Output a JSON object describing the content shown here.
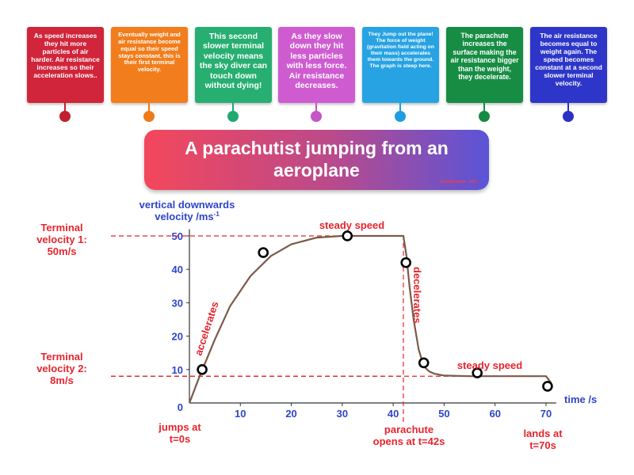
{
  "cards": [
    {
      "text": "As speed increases they hit more particles of air harder. Air resistance increases so their acceleration slows..",
      "color": "#d0253a",
      "pin": "#c0212e",
      "size": 8.5
    },
    {
      "text": "Eventually weight and air resistance become equal so their speed stays constant, this is their first terminal velocity.",
      "color": "#f27d1c",
      "pin": "#ee7b1a",
      "size": 7.5
    },
    {
      "text": "This second slower terminal velocity means the sky diver can touch down without dying!",
      "color": "#27ae71",
      "pin": "#1fa96e",
      "size": 10.5
    },
    {
      "text": "As they slow down they hit less particles with less force. Air resistance decreases.",
      "color": "#cf5bd1",
      "pin": "#c455c6",
      "size": 10.5
    },
    {
      "text": "They Jump out the plane! The force of weight (gravitation field acting on their mass) accelerates them towards the ground. The graph is steep here.",
      "color": "#27a3e3",
      "pin": "#1f9de0",
      "size": 6.8
    },
    {
      "text": "The parachute increases the surface making the air resistance bigger than the weight, they decelerate.",
      "color": "#178d44",
      "pin": "#158a41",
      "size": 8.8
    },
    {
      "text": "The air resistance becomes equal to weight again. The speed becomes constant at a second slower terminal velocity.",
      "color": "#2e36c9",
      "pin": "#2b31c4",
      "size": 8.5
    }
  ],
  "title": "A parachutist jumping from an aeroplane",
  "watermark": "Doodlesteam - 2017",
  "chart_data": {
    "type": "line",
    "ylabel_line1": "vertical downwards",
    "ylabel_line2": "velocity /ms",
    "ylabel_sup": "-1",
    "xlabel": "time /s",
    "xlim": [
      0,
      72
    ],
    "ylim": [
      0,
      52
    ],
    "x_ticks": [
      10,
      20,
      30,
      40,
      50,
      60,
      70
    ],
    "y_ticks": [
      10,
      20,
      30,
      40,
      50
    ],
    "origin_label": "0",
    "series": [
      {
        "x": [
          0,
          2,
          5,
          8,
          12,
          16,
          20,
          25,
          30,
          35,
          40,
          42,
          42.6,
          43.2,
          44,
          45,
          46,
          47,
          48,
          50,
          55,
          60,
          65,
          70,
          71
        ],
        "y": [
          0,
          8,
          19,
          29,
          38,
          44,
          47.5,
          49.5,
          50,
          50,
          50,
          50,
          44,
          35,
          25,
          16,
          11,
          9.5,
          8.8,
          8.2,
          8,
          8,
          8,
          8,
          6
        ]
      }
    ],
    "markers": [
      {
        "x": 2.5,
        "y": 10
      },
      {
        "x": 14.5,
        "y": 45
      },
      {
        "x": 31,
        "y": 50
      },
      {
        "x": 42.5,
        "y": 42
      },
      {
        "x": 46,
        "y": 12
      },
      {
        "x": 56.5,
        "y": 9
      },
      {
        "x": 70.3,
        "y": 5
      }
    ],
    "terminal_lines": [
      {
        "y": 50,
        "label_lines": [
          "Terminal",
          "velocity 1:",
          "50m/s"
        ]
      },
      {
        "y": 8,
        "label_lines": [
          "Terminal",
          "velocity 2:",
          "8m/s"
        ]
      }
    ],
    "parachute_line": {
      "x": 42
    },
    "annotations": {
      "accelerates": "accelerates",
      "steady_speed_1": "steady speed",
      "decelerates": "decelerates",
      "steady_speed_2": "steady speed",
      "jumps_lines": [
        "jumps at",
        "t=0s"
      ],
      "parachute_lines": [
        "parachute",
        "opens at t=42s"
      ],
      "lands_lines": [
        "lands at",
        "t=70s"
      ]
    },
    "colors": {
      "axis_text": "#2e45c9",
      "annot": "#e8242c",
      "curve": "#7a5a48",
      "dash": "#e8242c"
    }
  }
}
